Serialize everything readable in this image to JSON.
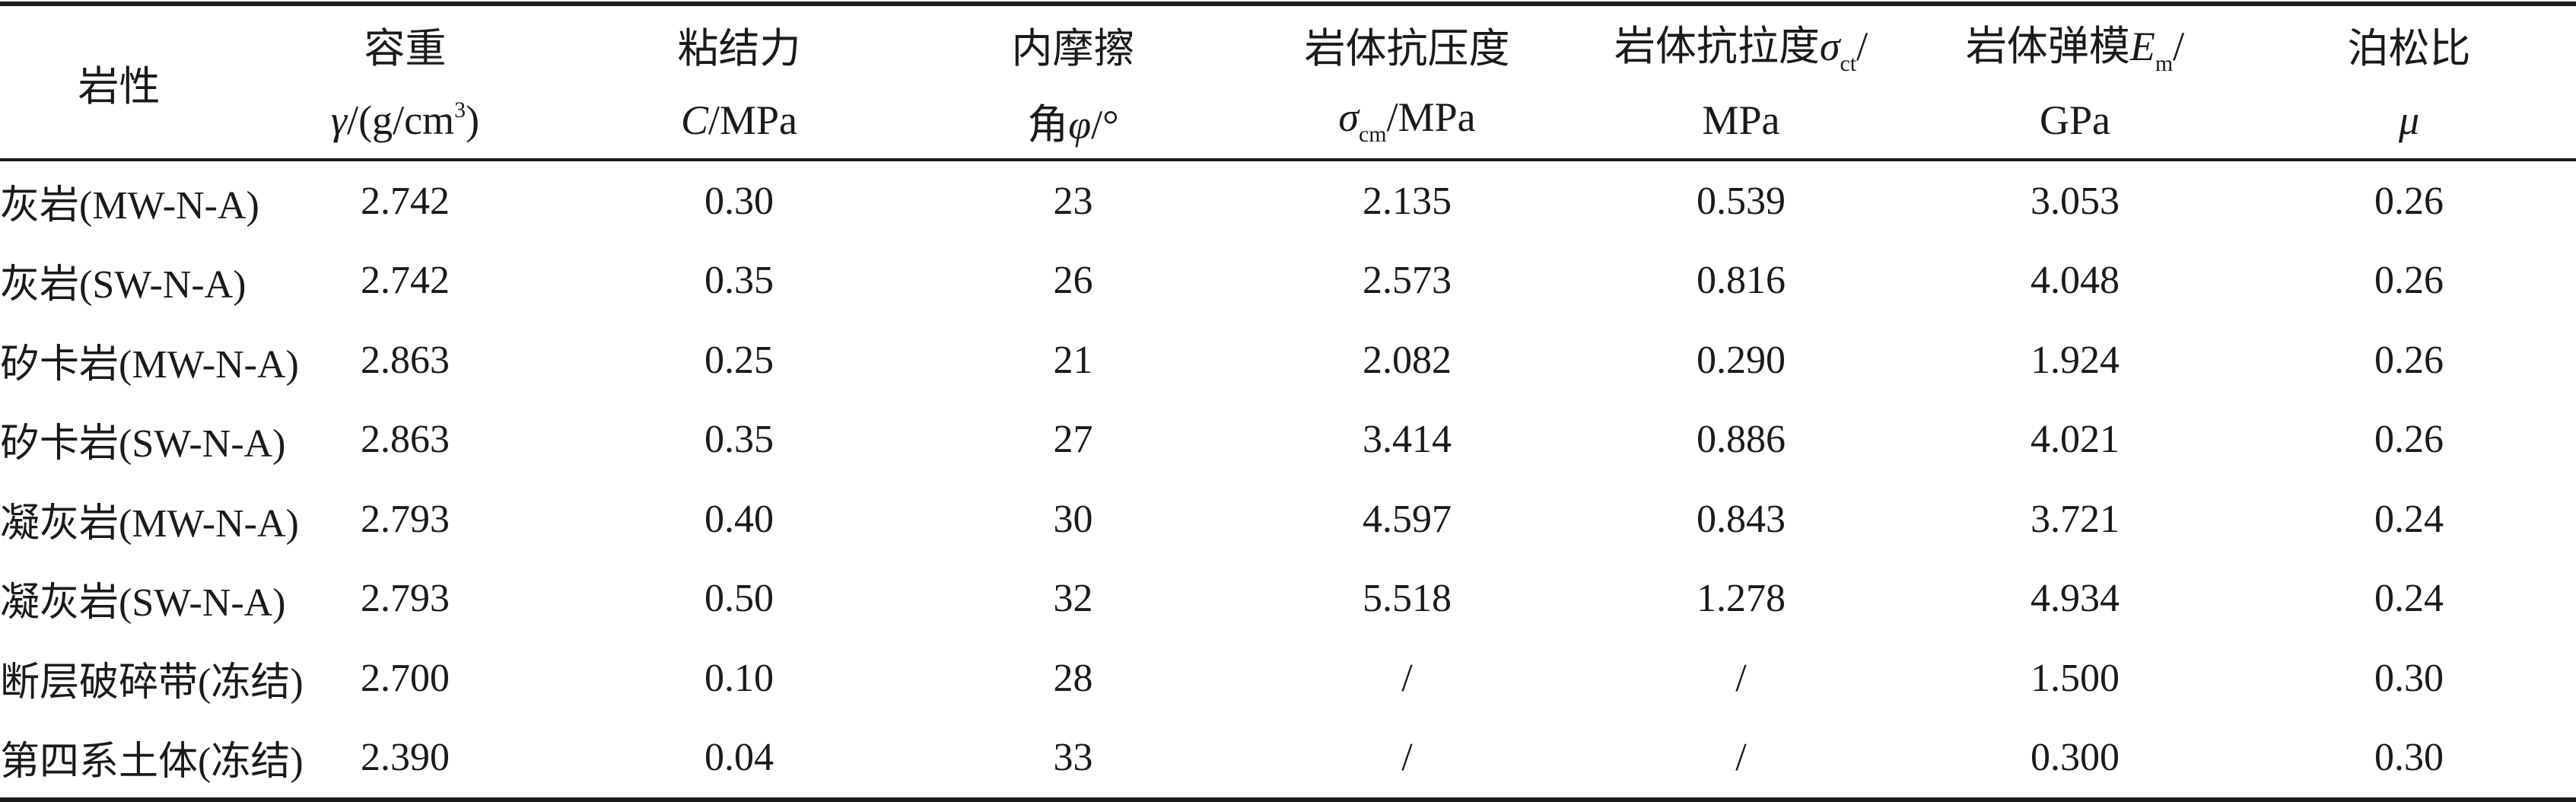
{
  "table": {
    "headers": {
      "name": "岩性",
      "density": {
        "line1": "容重",
        "sym": "γ",
        "unit_pre": "/(g/cm",
        "unit_sup": "3",
        "unit_post": ")"
      },
      "cohesion": {
        "line1": "粘结力",
        "sym": "C",
        "unit": "/MPa"
      },
      "friction": {
        "line1": "内摩擦",
        "line2_pre": "角",
        "sym": "φ",
        "unit": "/°"
      },
      "compressive": {
        "line1": "岩体抗压度",
        "sym": "σ",
        "sub": "cm",
        "unit": "/MPa"
      },
      "tensile": {
        "line1_pre": "岩体抗拉度",
        "sym": "σ",
        "sub": "ct",
        "line1_post": "/",
        "line2": "MPa"
      },
      "modulus": {
        "line1_pre": "岩体弹模",
        "sym": "E",
        "sub": "m",
        "line1_post": "/",
        "line2": "GPa"
      },
      "poisson": {
        "line1": "泊松比",
        "sym": "μ"
      }
    },
    "rows": [
      {
        "name": "灰岩(MW-N-A)",
        "density": "2.742",
        "cohesion": "0.30",
        "friction": "23",
        "compressive": "2.135",
        "tensile": "0.539",
        "modulus": "3.053",
        "poisson": "0.26"
      },
      {
        "name": "灰岩(SW-N-A)",
        "density": "2.742",
        "cohesion": "0.35",
        "friction": "26",
        "compressive": "2.573",
        "tensile": "0.816",
        "modulus": "4.048",
        "poisson": "0.26"
      },
      {
        "name": "矽卡岩(MW-N-A)",
        "density": "2.863",
        "cohesion": "0.25",
        "friction": "21",
        "compressive": "2.082",
        "tensile": "0.290",
        "modulus": "1.924",
        "poisson": "0.26"
      },
      {
        "name": "矽卡岩(SW-N-A)",
        "density": "2.863",
        "cohesion": "0.35",
        "friction": "27",
        "compressive": "3.414",
        "tensile": "0.886",
        "modulus": "4.021",
        "poisson": "0.26"
      },
      {
        "name": "凝灰岩(MW-N-A)",
        "density": "2.793",
        "cohesion": "0.40",
        "friction": "30",
        "compressive": "4.597",
        "tensile": "0.843",
        "modulus": "3.721",
        "poisson": "0.24"
      },
      {
        "name": "凝灰岩(SW-N-A)",
        "density": "2.793",
        "cohesion": "0.50",
        "friction": "32",
        "compressive": "5.518",
        "tensile": "1.278",
        "modulus": "4.934",
        "poisson": "0.24"
      },
      {
        "name": "断层破碎带(冻结)",
        "density": "2.700",
        "cohesion": "0.10",
        "friction": "28",
        "compressive": "/",
        "tensile": "/",
        "modulus": "1.500",
        "poisson": "0.30"
      },
      {
        "name": "第四系土体(冻结)",
        "density": "2.390",
        "cohesion": "0.04",
        "friction": "33",
        "compressive": "/",
        "tensile": "/",
        "modulus": "0.300",
        "poisson": "0.30"
      }
    ]
  }
}
